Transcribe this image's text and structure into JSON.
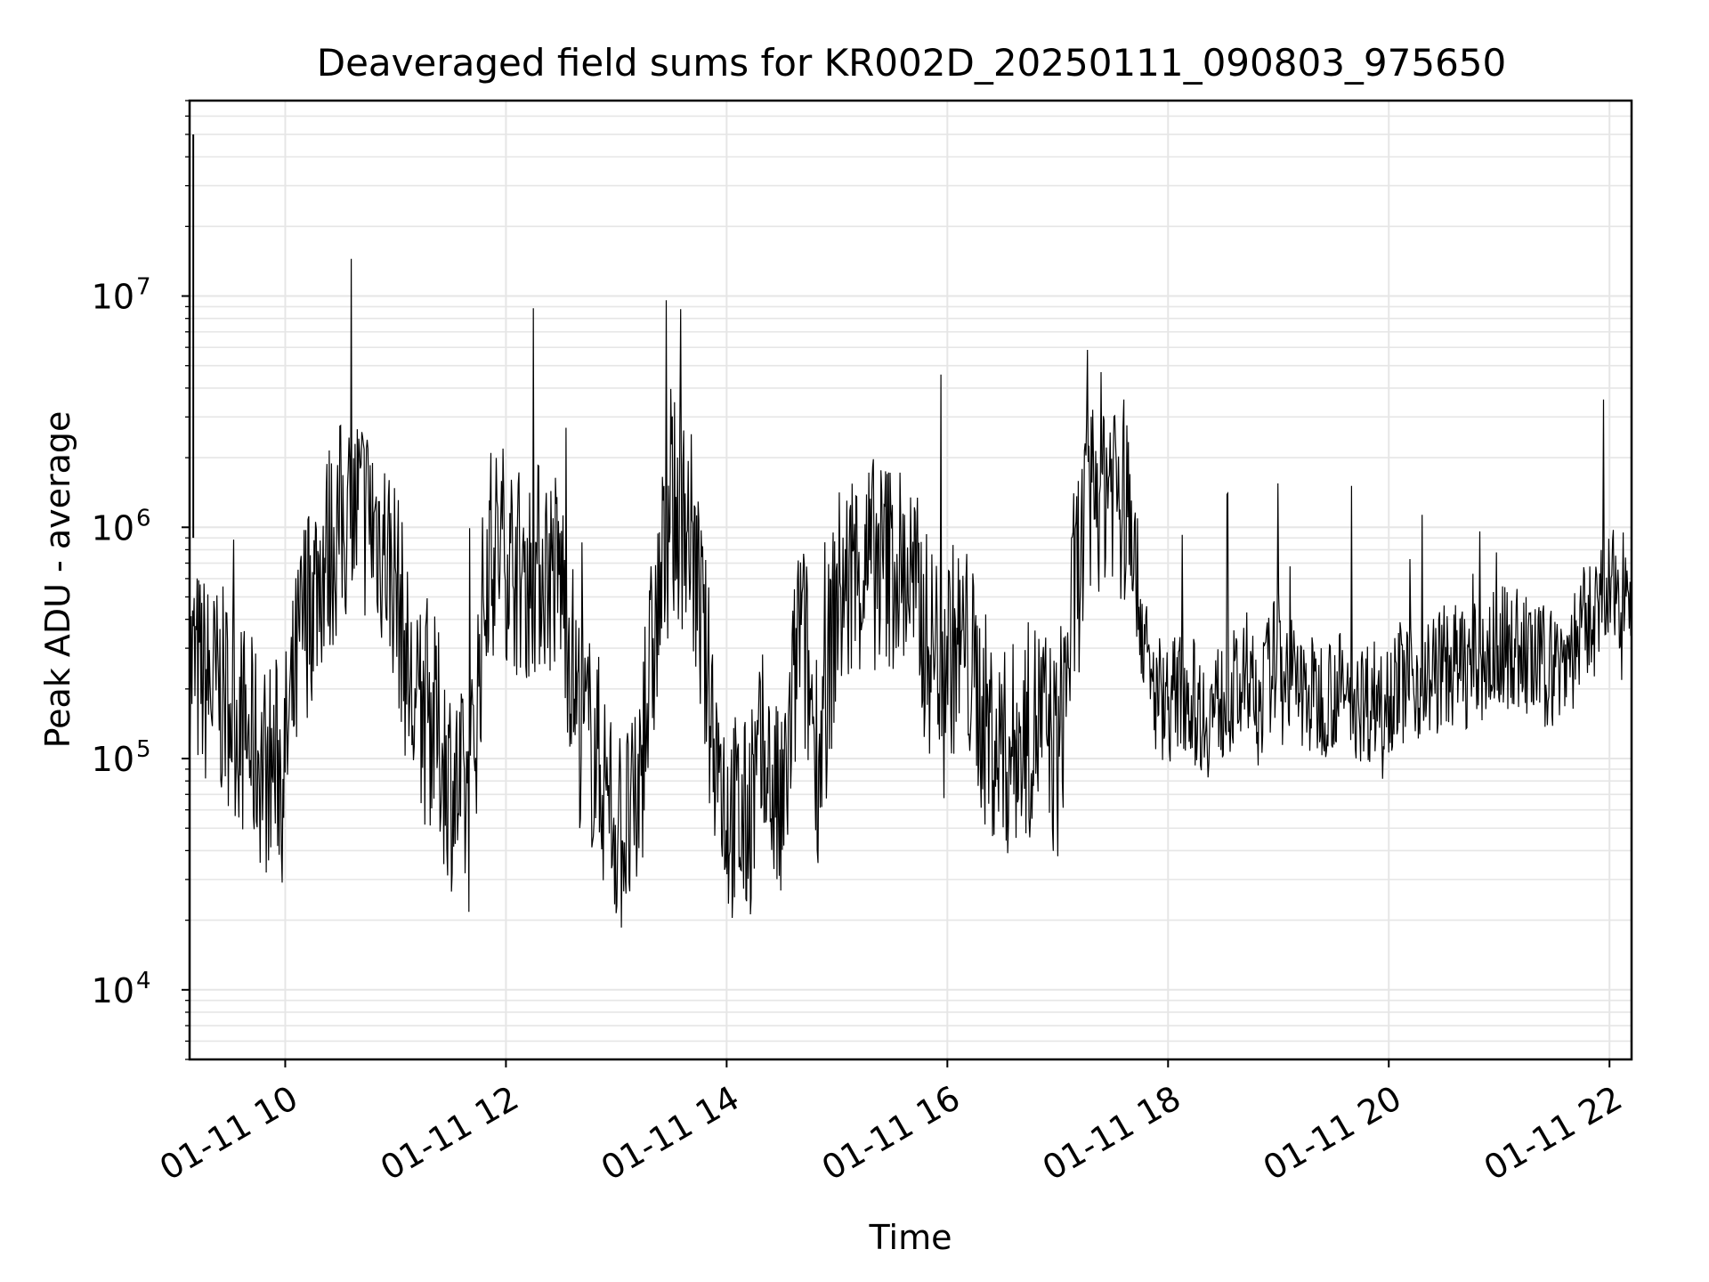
{
  "chart_data": {
    "type": "line",
    "title": "Deaveraged field sums for KR002D_20250111_090803_975650",
    "xlabel": "Time",
    "ylabel": "Peak ADU - average",
    "yscale": "log",
    "grid": true,
    "legend": "none",
    "xlim": [
      "2025-01-11 09:08",
      "2025-01-11 22:12"
    ],
    "ylim": [
      5000,
      70000000
    ],
    "x_ticks": [
      "01-11 10",
      "01-11 12",
      "01-11 14",
      "01-11 16",
      "01-11 18",
      "01-11 20",
      "01-11 22"
    ],
    "y_ticks": [
      {
        "base": "10",
        "exp": "4"
      },
      {
        "base": "10",
        "exp": "5"
      },
      {
        "base": "10",
        "exp": "6"
      },
      {
        "base": "10",
        "exp": "7"
      }
    ],
    "line_color": "#000000",
    "grid_color": "#e6e6e6",
    "series": [
      {
        "x": [
          "2025-01-11 09:10",
          "2025-01-11 09:20",
          "2025-01-11 09:30",
          "2025-01-11 09:40",
          "2025-01-11 09:50",
          "2025-01-11 10:00",
          "2025-01-11 10:10",
          "2025-01-11 10:20",
          "2025-01-11 10:30",
          "2025-01-11 10:40",
          "2025-01-11 10:50",
          "2025-01-11 11:00",
          "2025-01-11 11:10",
          "2025-01-11 11:20",
          "2025-01-11 11:30",
          "2025-01-11 11:40",
          "2025-01-11 11:50",
          "2025-01-11 12:00",
          "2025-01-11 12:10",
          "2025-01-11 12:20",
          "2025-01-11 12:30",
          "2025-01-11 12:40",
          "2025-01-11 12:50",
          "2025-01-11 13:00",
          "2025-01-11 13:10",
          "2025-01-11 13:20",
          "2025-01-11 13:30",
          "2025-01-11 13:40",
          "2025-01-11 13:50",
          "2025-01-11 14:00",
          "2025-01-11 14:10",
          "2025-01-11 14:20",
          "2025-01-11 14:30",
          "2025-01-11 14:40",
          "2025-01-11 14:50",
          "2025-01-11 15:00",
          "2025-01-11 15:10",
          "2025-01-11 15:20",
          "2025-01-11 15:30",
          "2025-01-11 15:40",
          "2025-01-11 15:50",
          "2025-01-11 16:00",
          "2025-01-11 16:10",
          "2025-01-11 16:20",
          "2025-01-11 16:30",
          "2025-01-11 16:40",
          "2025-01-11 16:50",
          "2025-01-11 17:00",
          "2025-01-11 17:10",
          "2025-01-11 17:20",
          "2025-01-11 17:30",
          "2025-01-11 17:40",
          "2025-01-11 17:50",
          "2025-01-11 18:00",
          "2025-01-11 18:10",
          "2025-01-11 18:20",
          "2025-01-11 18:30",
          "2025-01-11 18:40",
          "2025-01-11 18:50",
          "2025-01-11 19:00",
          "2025-01-11 19:10",
          "2025-01-11 19:20",
          "2025-01-11 19:30",
          "2025-01-11 19:40",
          "2025-01-11 19:50",
          "2025-01-11 20:00",
          "2025-01-11 20:10",
          "2025-01-11 20:20",
          "2025-01-11 20:30",
          "2025-01-11 20:40",
          "2025-01-11 20:50",
          "2025-01-11 21:00",
          "2025-01-11 21:10",
          "2025-01-11 21:20",
          "2025-01-11 21:30",
          "2025-01-11 21:40",
          "2025-01-11 21:50",
          "2025-01-11 22:00",
          "2025-01-11 22:10"
        ],
        "y": [
          250000,
          200000,
          180000,
          120000,
          90000,
          100000,
          400000,
          700000,
          1000000,
          1200000,
          1000000,
          600000,
          150000,
          150000,
          80000,
          60000,
          800000,
          800000,
          600000,
          700000,
          600000,
          150000,
          100000,
          50000,
          50000,
          300000,
          1200000,
          1000000,
          200000,
          60000,
          50000,
          100000,
          50000,
          400000,
          100000,
          500000,
          600000,
          700000,
          700000,
          600000,
          300000,
          300000,
          300000,
          150000,
          100000,
          120000,
          150000,
          100000,
          600000,
          1500000,
          1800000,
          1000000,
          200000,
          180000,
          200000,
          150000,
          180000,
          200000,
          180000,
          300000,
          200000,
          180000,
          200000,
          180000,
          180000,
          200000,
          220000,
          220000,
          250000,
          250000,
          250000,
          300000,
          300000,
          250000,
          250000,
          300000,
          400000,
          500000,
          600000
        ]
      }
    ]
  }
}
